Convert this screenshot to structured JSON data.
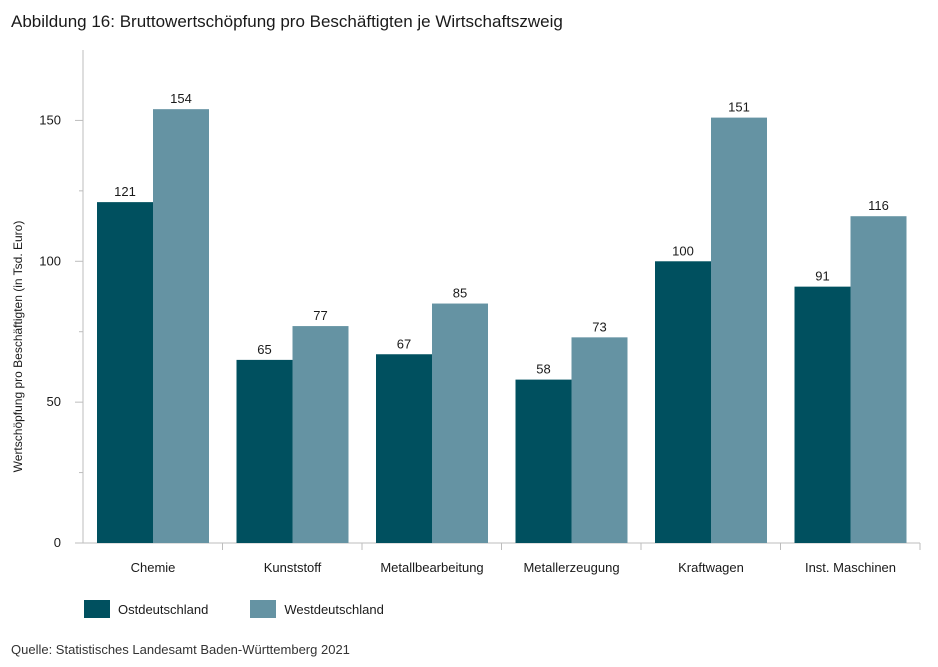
{
  "title": "Abbildung 16: Bruttowertschöpfung pro Beschäftigten je Wirtschaftszweig",
  "source": "Quelle: Statistisches Landesamt Baden-Württemberg 2021",
  "colors": {
    "ost": "#00505f",
    "west": "#6593a3",
    "axis": "#bdbdbd"
  },
  "chart_data": {
    "type": "bar",
    "title": "Abbildung 16: Bruttowertschöpfung pro Beschäftigten je Wirtschaftszweig",
    "xlabel": "",
    "ylabel": "Wertschöpfung pro Beschäftigten (in Tsd. Euro)",
    "ylim": [
      0,
      175
    ],
    "yticks": [
      0,
      50,
      100,
      150
    ],
    "grid": false,
    "legend_position": "bottom-left",
    "categories": [
      "Chemie",
      "Kunststoff",
      "Metallbearbeitung",
      "Metallerzeugung",
      "Kraftwagen",
      "Inst. Maschinen"
    ],
    "series": [
      {
        "name": "Ostdeutschland",
        "values": [
          121,
          65,
          67,
          58,
          100,
          91
        ]
      },
      {
        "name": "Westdeutschland",
        "values": [
          154,
          77,
          85,
          73,
          151,
          116
        ]
      }
    ]
  }
}
